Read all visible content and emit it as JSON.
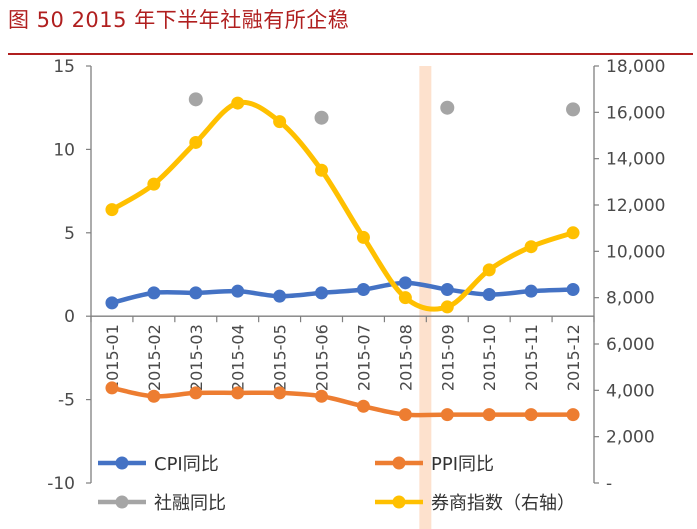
{
  "header": {
    "title": "图 50   2015 年下半年社融有所企稳"
  },
  "chart_data": {
    "type": "line",
    "categories": [
      "2015-01",
      "2015-02",
      "2015-03",
      "2015-04",
      "2015-05",
      "2015-06",
      "2015-07",
      "2015-08",
      "2015-09",
      "2015-10",
      "2015-11",
      "2015-12"
    ],
    "y_left": {
      "ticks": [
        "15",
        "10",
        "5",
        "0",
        "-5",
        "-10"
      ],
      "ylim": [
        -10,
        15
      ]
    },
    "y_right": {
      "ticks": [
        "18,000",
        "16,000",
        "14,000",
        "12,000",
        "10,000",
        "8,000",
        "6,000",
        "4,000",
        "2,000",
        "-"
      ],
      "ylim": [
        0,
        18000
      ]
    },
    "highlight_category": "2015-08",
    "series": [
      {
        "name": "CPI同比",
        "axis": "left",
        "color": "#4472c4",
        "values": [
          0.8,
          1.4,
          1.4,
          1.5,
          1.2,
          1.4,
          1.6,
          2.0,
          1.6,
          1.3,
          1.5,
          1.6
        ]
      },
      {
        "name": "PPI同比",
        "axis": "left",
        "color": "#ed7d31",
        "values": [
          -4.3,
          -4.8,
          -4.6,
          -4.6,
          -4.6,
          -4.8,
          -5.4,
          -5.9,
          -5.9,
          -5.9,
          -5.9,
          -5.9
        ]
      },
      {
        "name": "社融同比",
        "axis": "left",
        "color": "#a5a5a5",
        "values": [
          null,
          null,
          13.0,
          null,
          null,
          11.9,
          null,
          null,
          12.5,
          null,
          null,
          12.4
        ]
      },
      {
        "name": "券商指数（右轴）",
        "axis": "right",
        "color": "#ffc000",
        "values": [
          11800,
          12900,
          14700,
          16400,
          15600,
          13500,
          10600,
          8000,
          7600,
          9200,
          10200,
          10800
        ]
      }
    ]
  }
}
